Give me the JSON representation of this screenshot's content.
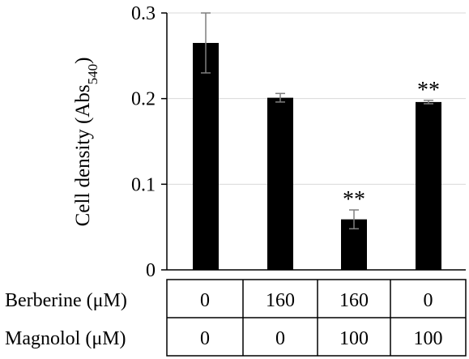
{
  "chart_data": {
    "type": "bar",
    "title": "",
    "ylabel_main": "Cell density (Abs",
    "ylabel_sub": "540",
    "ylabel_close": ")",
    "ylim": [
      0,
      0.3
    ],
    "y_ticks": [
      0,
      0.1,
      0.2,
      0.3
    ],
    "y_tick_labels": [
      "0",
      "0.1",
      "0.2",
      "0.3"
    ],
    "grid": "horizontal",
    "legend": "none",
    "bar_color": "#000000",
    "gridline_color": "#d9d9d9",
    "bars": [
      {
        "value": 0.265,
        "error": 0.035,
        "significance": ""
      },
      {
        "value": 0.201,
        "error": 0.005,
        "significance": ""
      },
      {
        "value": 0.059,
        "error": 0.011,
        "significance": "**"
      },
      {
        "value": 0.196,
        "error": 0.002,
        "significance": "**"
      }
    ],
    "treatment_table": {
      "rows": [
        {
          "label": "Berberine (μM)",
          "values": [
            "0",
            "160",
            "160",
            "0"
          ]
        },
        {
          "label": "Magnolol (μM)",
          "values": [
            "0",
            "0",
            "100",
            "100"
          ]
        }
      ]
    }
  }
}
